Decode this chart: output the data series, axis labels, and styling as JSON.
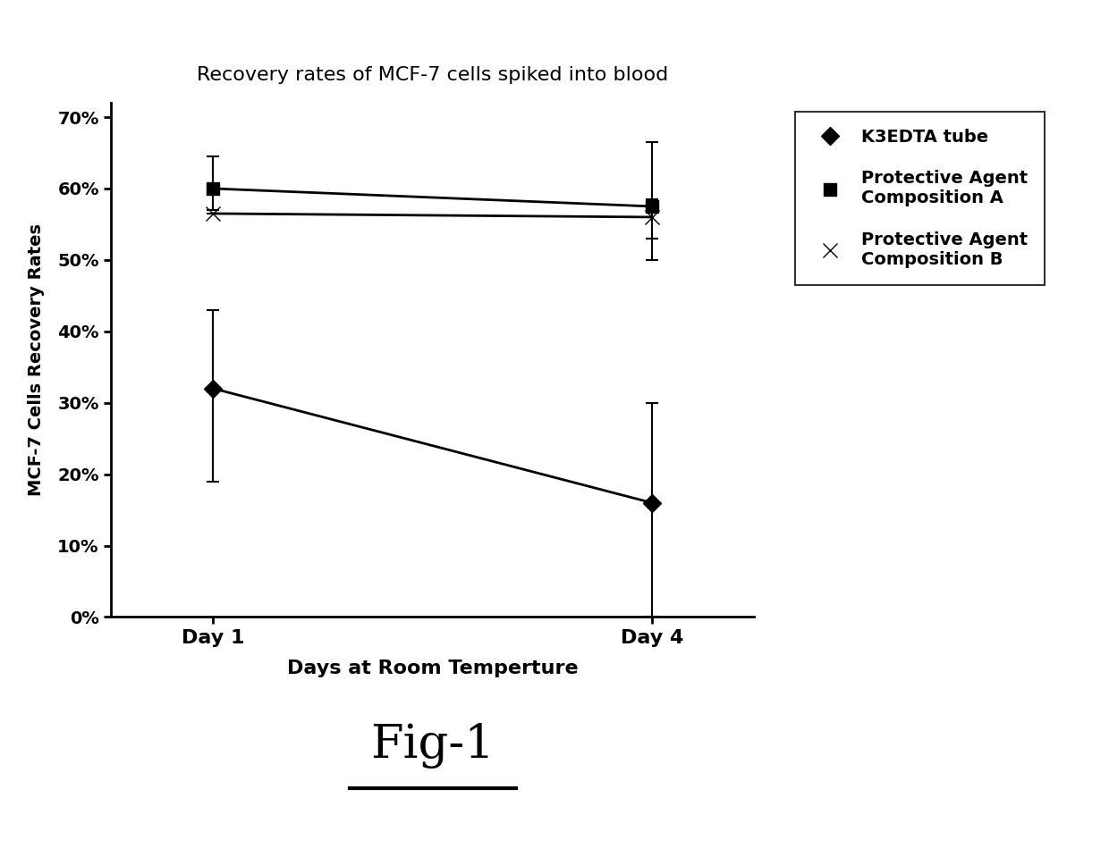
{
  "title": "Recovery rates of MCF-7 cells spiked into blood",
  "xlabel": "Days at Room Temperture",
  "ylabel": "MCF-7 Cells Recovery Rates",
  "x_labels": [
    "Day 1",
    "Day 4"
  ],
  "x_positions": [
    1,
    4
  ],
  "series": [
    {
      "label": "K3EDTA tube",
      "values": [
        0.32,
        0.16
      ],
      "yerr_low": [
        0.13,
        0.16
      ],
      "yerr_high": [
        0.11,
        0.14
      ],
      "marker": "D",
      "markersize": 10,
      "color": "#000000",
      "linewidth": 2.0
    },
    {
      "label": "Protective Agent\nComposition A",
      "values": [
        0.6,
        0.575
      ],
      "yerr_low": [
        0.03,
        0.075
      ],
      "yerr_high": [
        0.045,
        0.09
      ],
      "marker": "s",
      "markersize": 10,
      "color": "#000000",
      "linewidth": 2.0
    },
    {
      "label": "Protective Agent\nComposition B",
      "values": [
        0.565,
        0.56
      ],
      "yerr_low": [
        0.0,
        0.03
      ],
      "yerr_high": [
        0.0,
        0.025
      ],
      "marker": "x",
      "markersize": 12,
      "color": "#000000",
      "linewidth": 2.0
    }
  ],
  "ylim": [
    0,
    0.72
  ],
  "yticks": [
    0.0,
    0.1,
    0.2,
    0.3,
    0.4,
    0.5,
    0.6,
    0.7
  ],
  "ytick_labels": [
    "0%",
    "10%",
    "20%",
    "30%",
    "40%",
    "50%",
    "60%",
    "70%"
  ],
  "background_color": "#ffffff",
  "fig_caption": "Fig-1",
  "legend_labels": [
    "K3EDTA tube",
    "Protective Agent\nComposition A",
    "Protective Agent\nComposition B"
  ],
  "legend_markers": [
    "D",
    "s",
    "x"
  ],
  "marker_sizes": [
    10,
    10,
    12
  ]
}
